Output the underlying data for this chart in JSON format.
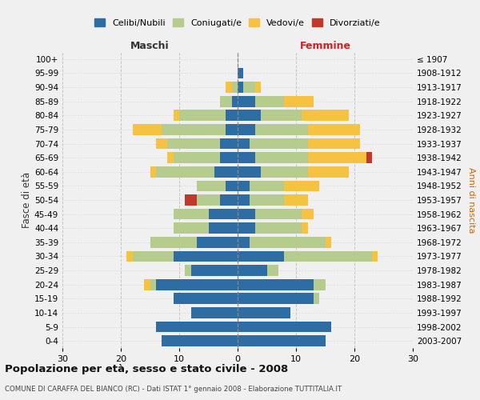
{
  "age_groups": [
    "0-4",
    "5-9",
    "10-14",
    "15-19",
    "20-24",
    "25-29",
    "30-34",
    "35-39",
    "40-44",
    "45-49",
    "50-54",
    "55-59",
    "60-64",
    "65-69",
    "70-74",
    "75-79",
    "80-84",
    "85-89",
    "90-94",
    "95-99",
    "100+"
  ],
  "birth_years": [
    "2003-2007",
    "1998-2002",
    "1993-1997",
    "1988-1992",
    "1983-1987",
    "1978-1982",
    "1973-1977",
    "1968-1972",
    "1963-1967",
    "1958-1962",
    "1953-1957",
    "1948-1952",
    "1943-1947",
    "1938-1942",
    "1933-1937",
    "1928-1932",
    "1923-1927",
    "1918-1922",
    "1913-1917",
    "1908-1912",
    "≤ 1907"
  ],
  "colors": {
    "celibe": "#2e6da4",
    "coniugato": "#b5cc8e",
    "vedovo": "#f5c242",
    "divorziato": "#c0392b"
  },
  "maschi": {
    "celibe": [
      13,
      14,
      8,
      11,
      14,
      8,
      11,
      7,
      5,
      5,
      3,
      2,
      4,
      3,
      3,
      2,
      2,
      1,
      0,
      0,
      0
    ],
    "coniugato": [
      0,
      0,
      0,
      0,
      1,
      1,
      7,
      8,
      6,
      6,
      4,
      5,
      10,
      8,
      9,
      11,
      8,
      2,
      1,
      0,
      0
    ],
    "vedovo": [
      0,
      0,
      0,
      0,
      1,
      0,
      1,
      0,
      0,
      0,
      0,
      0,
      1,
      1,
      2,
      5,
      1,
      0,
      1,
      0,
      0
    ],
    "divorziato": [
      0,
      0,
      0,
      0,
      0,
      0,
      0,
      0,
      0,
      0,
      2,
      0,
      0,
      0,
      0,
      0,
      0,
      0,
      0,
      0,
      0
    ]
  },
  "femmine": {
    "celibe": [
      15,
      16,
      9,
      13,
      13,
      5,
      8,
      2,
      3,
      3,
      2,
      2,
      4,
      3,
      2,
      3,
      4,
      3,
      1,
      1,
      0
    ],
    "coniugato": [
      0,
      0,
      0,
      1,
      2,
      2,
      15,
      13,
      8,
      8,
      6,
      6,
      8,
      9,
      10,
      9,
      7,
      5,
      2,
      0,
      0
    ],
    "vedovo": [
      0,
      0,
      0,
      0,
      0,
      0,
      1,
      1,
      1,
      2,
      4,
      6,
      7,
      10,
      9,
      9,
      8,
      5,
      1,
      0,
      0
    ],
    "divorziato": [
      0,
      0,
      0,
      0,
      0,
      0,
      0,
      0,
      0,
      0,
      0,
      0,
      0,
      1,
      0,
      0,
      0,
      0,
      0,
      0,
      0
    ]
  },
  "xlim": 30,
  "title": "Popolazione per età, sesso e stato civile - 2008",
  "subtitle": "COMUNE DI CARAFFA DEL BIANCO (RC) - Dati ISTAT 1° gennaio 2008 - Elaborazione TUTTITALIA.IT",
  "ylabel_left": "Fasce di età",
  "ylabel_right": "Anni di nascita",
  "xlabel_maschi": "Maschi",
  "xlabel_femmine": "Femmine",
  "legend_labels": [
    "Celibi/Nubili",
    "Coniugati/e",
    "Vedovi/e",
    "Divorziati/e"
  ],
  "bg_color": "#f0f0f0"
}
